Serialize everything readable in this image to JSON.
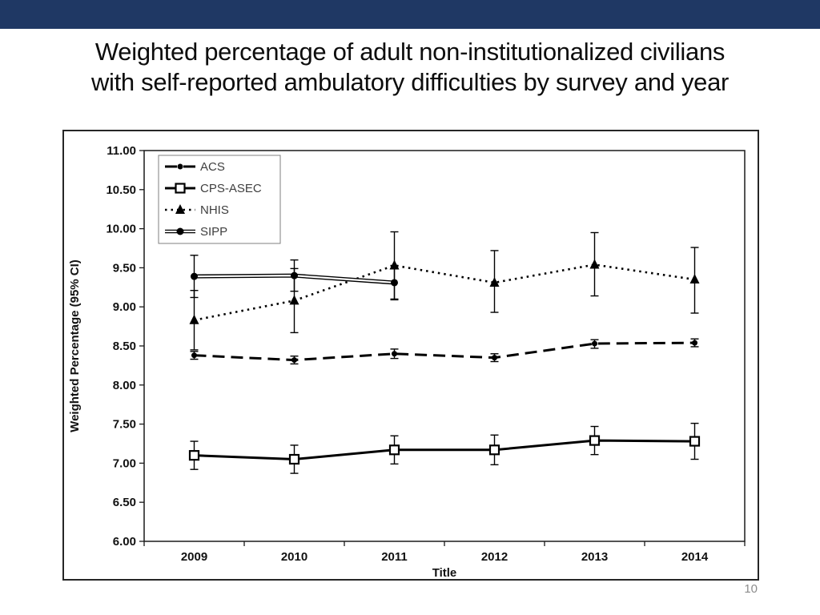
{
  "slide": {
    "title_line1": "Weighted percentage of adult non-institutionalized civilians",
    "title_line2": "with self-reported ambulatory difficulties by survey and year",
    "page_number": "10",
    "top_bar_color": "#1f3864"
  },
  "chart_data": {
    "type": "line",
    "title": "",
    "xlabel": "Title",
    "ylabel": "Weighted Percentage (95% CI)",
    "ylim": [
      6.0,
      11.0
    ],
    "ytick_step": 0.5,
    "ytick_labels": [
      "6.00",
      "6.50",
      "7.00",
      "7.50",
      "8.00",
      "8.50",
      "9.00",
      "9.50",
      "10.00",
      "10.50",
      "11.00"
    ],
    "categories": [
      "2009",
      "2010",
      "2011",
      "2012",
      "2013",
      "2014"
    ],
    "grid": false,
    "legend_position": "top-left",
    "series": [
      {
        "name": "ACS",
        "style": "dashed",
        "marker": "dot",
        "marker_size": 3.5,
        "values": [
          8.38,
          8.32,
          8.4,
          8.35,
          8.53,
          8.54
        ],
        "ci_low": [
          8.33,
          8.27,
          8.34,
          8.3,
          8.47,
          8.49
        ],
        "ci_high": [
          8.43,
          8.37,
          8.46,
          8.4,
          8.58,
          8.59
        ]
      },
      {
        "name": "CPS-ASEC",
        "style": "solid",
        "marker": "open-square",
        "marker_size": 5.5,
        "values": [
          7.1,
          7.05,
          7.17,
          7.17,
          7.29,
          7.28
        ],
        "ci_low": [
          6.92,
          6.87,
          6.99,
          6.98,
          7.11,
          7.05
        ],
        "ci_high": [
          7.28,
          7.23,
          7.35,
          7.36,
          7.47,
          7.51
        ]
      },
      {
        "name": "NHIS",
        "style": "dotted",
        "marker": "triangle",
        "marker_size": 6,
        "values": [
          8.83,
          9.08,
          9.53,
          9.31,
          9.54,
          9.35
        ],
        "ci_low": [
          8.45,
          8.67,
          9.1,
          8.93,
          9.14,
          8.92
        ],
        "ci_high": [
          9.21,
          9.49,
          9.96,
          9.72,
          9.95,
          9.76
        ]
      },
      {
        "name": "SIPP",
        "style": "double",
        "marker": "dot",
        "marker_size": 4.5,
        "values": [
          9.39,
          9.4,
          9.31
        ],
        "ci_low": [
          9.12,
          9.2,
          9.09
        ],
        "ci_high": [
          9.66,
          9.6,
          9.53
        ]
      }
    ]
  }
}
